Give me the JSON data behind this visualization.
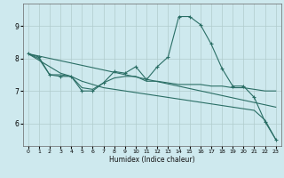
{
  "xlabel": "Humidex (Indice chaleur)",
  "background_color": "#cee9ee",
  "grid_color": "#b0cccc",
  "line_color": "#2a6e65",
  "xlim": [
    -0.5,
    23.5
  ],
  "ylim": [
    5.3,
    9.7
  ],
  "yticks": [
    6,
    7,
    8,
    9
  ],
  "xticks": [
    0,
    1,
    2,
    3,
    4,
    5,
    6,
    7,
    8,
    9,
    10,
    11,
    12,
    13,
    14,
    15,
    16,
    17,
    18,
    19,
    20,
    21,
    22,
    23
  ],
  "lines": [
    {
      "x": [
        0,
        1,
        2,
        3,
        4,
        5,
        6,
        7,
        8,
        9,
        10,
        11,
        12,
        13,
        14,
        15,
        16,
        17,
        18,
        19,
        20,
        21,
        22,
        23
      ],
      "y": [
        8.15,
        8.05,
        7.5,
        7.45,
        7.45,
        7.0,
        7.0,
        7.25,
        7.6,
        7.55,
        7.75,
        7.35,
        7.75,
        8.05,
        9.3,
        9.3,
        9.05,
        8.45,
        7.7,
        7.15,
        7.15,
        6.8,
        6.05,
        5.5
      ],
      "has_markers": true
    },
    {
      "x": [
        0,
        1,
        2,
        3,
        4,
        5,
        6,
        7,
        8,
        9,
        10,
        11,
        12,
        13,
        14,
        15,
        16,
        17,
        18,
        19,
        20,
        21,
        22,
        23
      ],
      "y": [
        8.15,
        8.0,
        7.5,
        7.5,
        7.45,
        7.1,
        7.05,
        7.25,
        7.4,
        7.45,
        7.45,
        7.3,
        7.3,
        7.25,
        7.2,
        7.2,
        7.2,
        7.15,
        7.15,
        7.1,
        7.1,
        7.05,
        7.0,
        7.0
      ],
      "has_markers": false
    },
    {
      "x": [
        0,
        1,
        2,
        3,
        4,
        5,
        6,
        7,
        8,
        9,
        10,
        11,
        12,
        13,
        14,
        15,
        16,
        17,
        18,
        19,
        20,
        21,
        22,
        23
      ],
      "y": [
        8.15,
        7.95,
        7.75,
        7.55,
        7.45,
        7.3,
        7.2,
        7.1,
        7.05,
        7.0,
        6.95,
        6.9,
        6.85,
        6.8,
        6.75,
        6.7,
        6.65,
        6.6,
        6.55,
        6.5,
        6.45,
        6.4,
        6.1,
        5.5
      ],
      "has_markers": false
    },
    {
      "x": [
        0,
        23
      ],
      "y": [
        8.15,
        6.5
      ],
      "has_markers": false
    }
  ]
}
